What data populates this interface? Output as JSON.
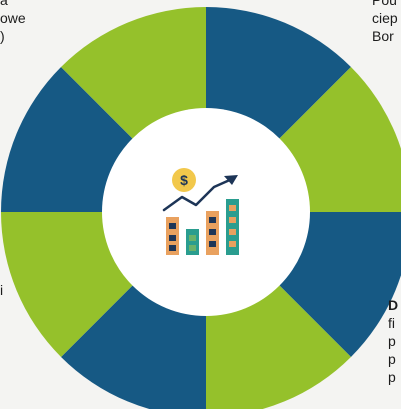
{
  "colors": {
    "green": "#95c12b",
    "blue": "#165984",
    "center": "#ffffff",
    "icon_yellow": "#f2c84b",
    "icon_orange": "#e9a15f",
    "icon_teal": "#2a9d8f",
    "icon_navy": "#1d3557",
    "icon_green": "#6bb26a"
  },
  "text_left_top": [
    "a",
    "owe",
    ")"
  ],
  "text_right_top": [
    "Pou",
    "ciep",
    "Bor"
  ],
  "text_right_bottom": [
    "D",
    "fi",
    "p",
    "p",
    "p"
  ],
  "text_left_mid": [
    "i"
  ],
  "icons": {
    "center": "finance-growth-icon"
  }
}
